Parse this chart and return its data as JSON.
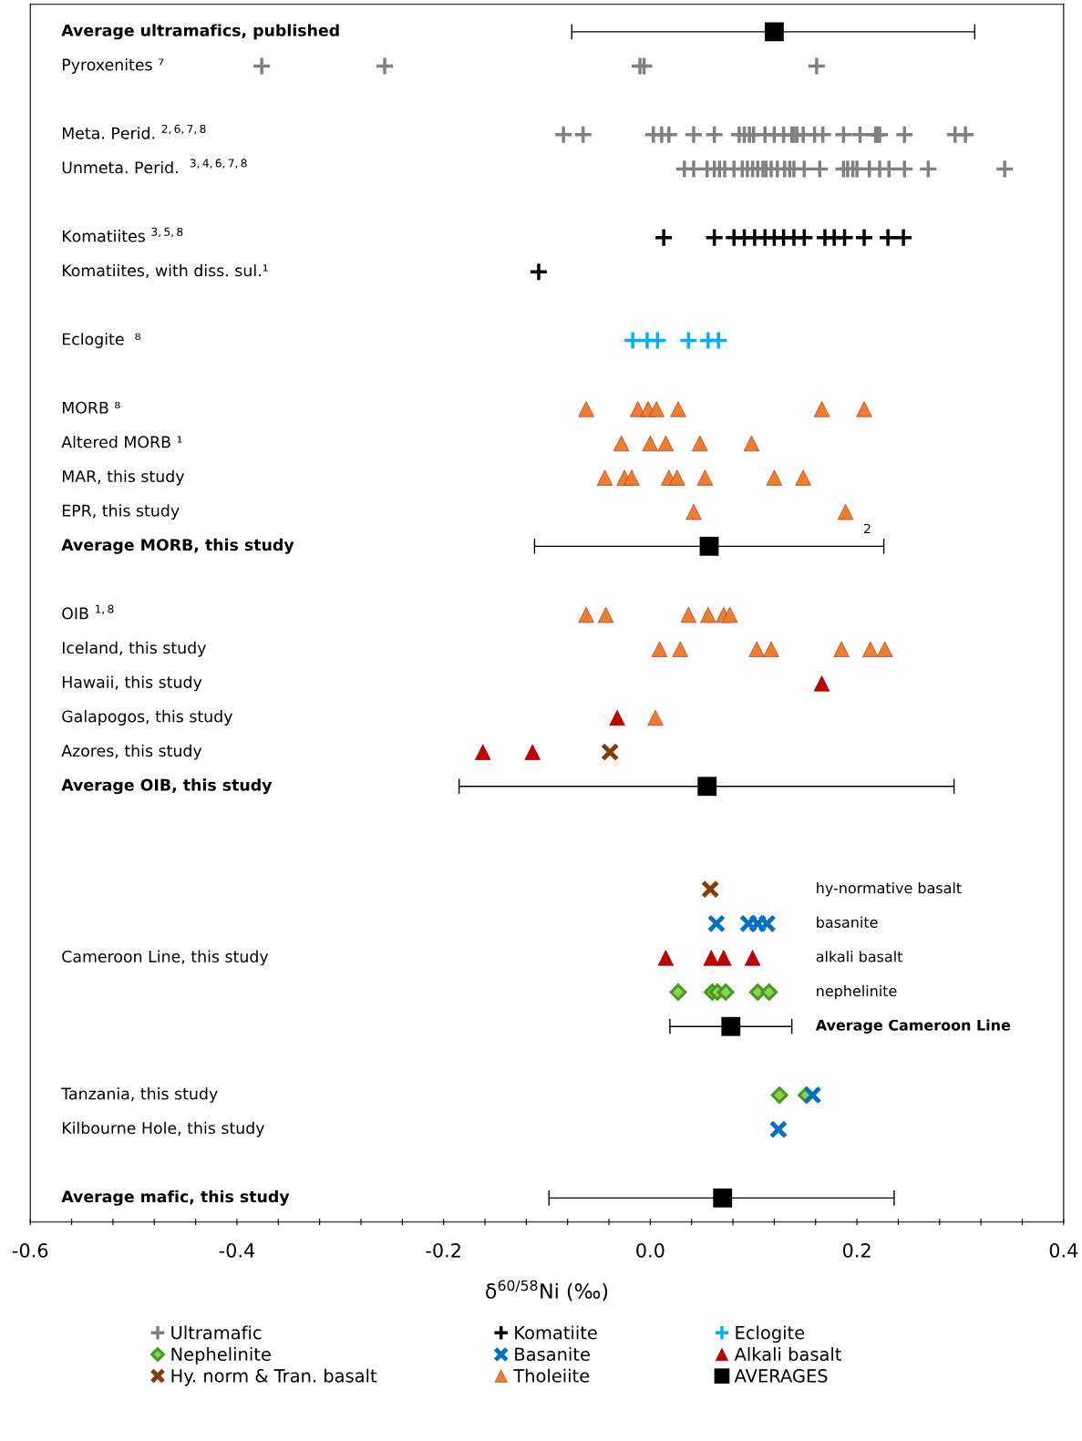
{
  "chart_data": {
    "type": "scatter",
    "orientation": "horizontal",
    "xlabel": "δ$^{60/58}$Ni (‰)",
    "categories": [
      "Average ultramafics, published",
      "Pyroxenites ⁷",
      null,
      "Meta. Perid. $^{2,6,7,8}$",
      "Unmeta. Perid.  $^{3,4,6,7,8}$",
      null,
      "Komatiites $^{3,5,8}$",
      "Komatiites, with diss. sul.¹",
      null,
      "Eclogite  ⁸",
      null,
      "MORB ⁸",
      "Altered MORB ¹",
      "MAR, this study",
      "EPR, this study",
      "Average MORB, this study",
      null,
      "OIB $^{1,8}$",
      "Iceland, this study",
      "Hawaii, this study",
      "Galapogos, this study",
      "Azores, this study",
      "Average OIB, this study",
      null,
      null,
      "hy-normative basalt",
      "basanite",
      "Cameroon Line, this study",
      "nephelinite",
      "Average Cameroon Line",
      null,
      "Tanzania, this study",
      "Kilbourne Hole, this study",
      null,
      "Average mafic, this study"
    ],
    "y2_categories": [
      null,
      null,
      null,
      null,
      null,
      null,
      null,
      null,
      null,
      null,
      null,
      null,
      null,
      null,
      null,
      null,
      null,
      null,
      null,
      null,
      null,
      null,
      null,
      null,
      null,
      null,
      null,
      "alkali basalt",
      null,
      null,
      null,
      null,
      null,
      null,
      null
    ],
    "xlim": [
      -0.6,
      0.4
    ],
    "xticks": [
      -0.6,
      {
        "value": -0.56,
        "label": null
      },
      {
        "value": -0.52,
        "label": null
      },
      {
        "value": -0.48,
        "label": null
      },
      {
        "value": -0.44,
        "label": null
      },
      -0.4,
      {
        "value": -0.36,
        "label": null
      },
      {
        "value": -0.32,
        "label": null
      },
      {
        "value": -0.28,
        "label": null
      },
      {
        "value": -0.24,
        "label": null
      },
      -0.2,
      {
        "value": -0.16,
        "label": null
      },
      {
        "value": -0.12,
        "label": null
      },
      {
        "value": -0.08,
        "label": null
      },
      {
        "value": -0.04,
        "label": null
      },
      {
        "value": 0,
        "label": "0.0"
      },
      {
        "value": 0.04,
        "label": null
      },
      {
        "value": 0.08,
        "label": null
      },
      {
        "value": 0.12,
        "label": null
      },
      {
        "value": 0.16,
        "label": null
      },
      0.2,
      {
        "value": 0.24,
        "label": null
      },
      {
        "value": 0.28,
        "label": null
      },
      {
        "value": 0.32,
        "label": null
      },
      {
        "value": 0.36,
        "label": null
      },
      0.4
    ],
    "grid": false,
    "legend": "bottom",
    "annotations": [
      {
        "text": "2",
        "x": 0.189,
        "y": "EPR, this study"
      }
    ],
    "series": [
      {
        "name": "Ultramafic",
        "color": "#808080",
        "marker": "cross",
        "values": [
          -0.376,
          -0.257,
          -0.01,
          -0.006,
          0.161,
          -0.084,
          -0.065,
          0.003,
          0.011,
          0.018,
          0.042,
          0.062,
          0.086,
          0.091,
          0.096,
          0.1,
          0.111,
          0.12,
          0.129,
          0.137,
          0.139,
          0.142,
          0.148,
          0.159,
          0.167,
          0.187,
          0.203,
          0.218,
          0.22,
          0.222,
          0.246,
          0.295,
          0.305,
          0.033,
          0.042,
          0.055,
          0.062,
          0.067,
          0.072,
          0.081,
          0.089,
          0.094,
          0.099,
          0.104,
          0.109,
          0.112,
          0.117,
          0.123,
          0.13,
          0.135,
          0.139,
          0.149,
          0.164,
          0.187,
          0.191,
          0.196,
          0.2,
          0.212,
          0.222,
          0.231,
          0.246,
          0.269,
          0.343
        ],
        "x": [
          "Pyroxenites ⁷",
          "Pyroxenites ⁷",
          "Pyroxenites ⁷",
          "Pyroxenites ⁷",
          "Pyroxenites ⁷",
          "Meta. Perid. $^{2,6,7,8}$",
          "Meta. Perid. $^{2,6,7,8}$",
          "Meta. Perid. $^{2,6,7,8}$",
          "Meta. Perid. $^{2,6,7,8}$",
          "Meta. Perid. $^{2,6,7,8}$",
          "Meta. Perid. $^{2,6,7,8}$",
          "Meta. Perid. $^{2,6,7,8}$",
          "Meta. Perid. $^{2,6,7,8}$",
          "Meta. Perid. $^{2,6,7,8}$",
          "Meta. Perid. $^{2,6,7,8}$",
          "Meta. Perid. $^{2,6,7,8}$",
          "Meta. Perid. $^{2,6,7,8}$",
          "Meta. Perid. $^{2,6,7,8}$",
          "Meta. Perid. $^{2,6,7,8}$",
          "Meta. Perid. $^{2,6,7,8}$",
          "Meta. Perid. $^{2,6,7,8}$",
          "Meta. Perid. $^{2,6,7,8}$",
          "Meta. Perid. $^{2,6,7,8}$",
          "Meta. Perid. $^{2,6,7,8}$",
          "Meta. Perid. $^{2,6,7,8}$",
          "Meta. Perid. $^{2,6,7,8}$",
          "Meta. Perid. $^{2,6,7,8}$",
          "Meta. Perid. $^{2,6,7,8}$",
          "Meta. Perid. $^{2,6,7,8}$",
          "Meta. Perid. $^{2,6,7,8}$",
          "Meta. Perid. $^{2,6,7,8}$",
          "Meta. Perid. $^{2,6,7,8}$",
          "Meta. Perid. $^{2,6,7,8}$",
          "Unmeta. Perid.  $^{3,4,6,7,8}$",
          "Unmeta. Perid.  $^{3,4,6,7,8}$",
          "Unmeta. Perid.  $^{3,4,6,7,8}$",
          "Unmeta. Perid.  $^{3,4,6,7,8}$",
          "Unmeta. Perid.  $^{3,4,6,7,8}$",
          "Unmeta. Perid.  $^{3,4,6,7,8}$",
          "Unmeta. Perid.  $^{3,4,6,7,8}$",
          "Unmeta. Perid.  $^{3,4,6,7,8}$",
          "Unmeta. Perid.  $^{3,4,6,7,8}$",
          "Unmeta. Perid.  $^{3,4,6,7,8}$",
          "Unmeta. Perid.  $^{3,4,6,7,8}$",
          "Unmeta. Perid.  $^{3,4,6,7,8}$",
          "Unmeta. Perid.  $^{3,4,6,7,8}$",
          "Unmeta. Perid.  $^{3,4,6,7,8}$",
          "Unmeta. Perid.  $^{3,4,6,7,8}$",
          "Unmeta. Perid.  $^{3,4,6,7,8}$",
          "Unmeta. Perid.  $^{3,4,6,7,8}$",
          "Unmeta. Perid.  $^{3,4,6,7,8}$",
          "Unmeta. Perid.  $^{3,4,6,7,8}$",
          "Unmeta. Perid.  $^{3,4,6,7,8}$",
          "Unmeta. Perid.  $^{3,4,6,7,8}$",
          "Unmeta. Perid.  $^{3,4,6,7,8}$",
          "Unmeta. Perid.  $^{3,4,6,7,8}$",
          "Unmeta. Perid.  $^{3,4,6,7,8}$",
          "Unmeta. Perid.  $^{3,4,6,7,8}$",
          "Unmeta. Perid.  $^{3,4,6,7,8}$",
          "Unmeta. Perid.  $^{3,4,6,7,8}$",
          "Unmeta. Perid.  $^{3,4,6,7,8}$",
          "Unmeta. Perid.  $^{3,4,6,7,8}$",
          "Unmeta. Perid.  $^{3,4,6,7,8}$"
        ]
      },
      {
        "name": "Komatiite",
        "color": "#000000",
        "marker": "cross",
        "values": [
          0.013,
          0.062,
          0.081,
          0.091,
          0.101,
          0.111,
          0.12,
          0.129,
          0.139,
          0.149,
          0.169,
          0.178,
          0.188,
          0.207,
          0.23,
          0.245,
          -0.108
        ],
        "x": [
          "Komatiites $^{3,5,8}$",
          "Komatiites $^{3,5,8}$",
          "Komatiites $^{3,5,8}$",
          "Komatiites $^{3,5,8}$",
          "Komatiites $^{3,5,8}$",
          "Komatiites $^{3,5,8}$",
          "Komatiites $^{3,5,8}$",
          "Komatiites $^{3,5,8}$",
          "Komatiites $^{3,5,8}$",
          "Komatiites $^{3,5,8}$",
          "Komatiites $^{3,5,8}$",
          "Komatiites $^{3,5,8}$",
          "Komatiites $^{3,5,8}$",
          "Komatiites $^{3,5,8}$",
          "Komatiites $^{3,5,8}$",
          "Komatiites $^{3,5,8}$",
          "Komatiites, with diss. sul.¹"
        ]
      },
      {
        "name": "Eclogite",
        "color": "#00b0f0",
        "marker": "cross",
        "values": [
          -0.017,
          -0.003,
          0.007,
          0.037,
          0.056,
          0.066
        ],
        "x": [
          "Eclogite  ⁸",
          "Eclogite  ⁸",
          "Eclogite  ⁸",
          "Eclogite  ⁸",
          "Eclogite  ⁸",
          "Eclogite  ⁸"
        ]
      },
      {
        "name": "Nephelinite",
        "color": "#92d050",
        "marker": "diamond",
        "values": [
          0.027,
          0.06,
          0.065,
          0.073,
          0.104,
          0.115,
          0.125,
          0.151
        ],
        "x": [
          "nephelinite",
          "nephelinite",
          "nephelinite",
          "nephelinite",
          "nephelinite",
          "nephelinite",
          "Tanzania, this study",
          "Tanzania, this study"
        ]
      },
      {
        "name": "Basanite",
        "color": "#0070c0",
        "marker": "x",
        "values": [
          0.064,
          0.095,
          0.104,
          0.113,
          0.157,
          0.124
        ],
        "x": [
          "basanite",
          "basanite",
          "basanite",
          "basanite",
          "Tanzania, this study",
          "Kilbourne Hole, this study"
        ]
      },
      {
        "name": "Alkali basalt",
        "color": "#c00000",
        "marker": "triangle",
        "values": [
          0.166,
          -0.032,
          -0.162,
          -0.114,
          0.015,
          0.059,
          0.071,
          0.099
        ],
        "x": [
          "Hawaii, this study",
          "Galapogos, this study",
          "Azores, this study",
          "Azores, this study",
          "Cameroon Line, this study",
          "Cameroon Line, this study",
          "Cameroon Line, this study",
          "Cameroon Line, this study"
        ]
      },
      {
        "name": "Hy. norm & Tran. basalt",
        "color": "#843c0c",
        "marker": "x",
        "values": [
          -0.039,
          0.058
        ],
        "x": [
          "Azores, this study",
          "hy-normative basalt"
        ]
      },
      {
        "name": "Tholeiite",
        "color": "#ed7d31",
        "marker": "triangle",
        "values": [
          -0.062,
          -0.012,
          -0.002,
          0.006,
          0.027,
          0.166,
          0.207,
          -0.028,
          0.0,
          0.015,
          0.048,
          0.098,
          -0.044,
          -0.025,
          -0.018,
          0.018,
          0.026,
          0.053,
          0.12,
          0.148,
          0.042,
          0.189,
          -0.062,
          -0.043,
          0.037,
          0.056,
          0.071,
          0.077,
          0.009,
          0.029,
          0.103,
          0.117,
          0.185,
          0.213,
          0.227,
          0.005
        ],
        "x": [
          "MORB ⁸",
          "MORB ⁸",
          "MORB ⁸",
          "MORB ⁸",
          "MORB ⁸",
          "MORB ⁸",
          "MORB ⁸",
          "Altered MORB ¹",
          "Altered MORB ¹",
          "Altered MORB ¹",
          "Altered MORB ¹",
          "Altered MORB ¹",
          "MAR, this study",
          "MAR, this study",
          "MAR, this study",
          "MAR, this study",
          "MAR, this study",
          "MAR, this study",
          "MAR, this study",
          "MAR, this study",
          "EPR, this study",
          "EPR, this study",
          "OIB $^{1,8}$",
          "OIB $^{1,8}$",
          "OIB $^{1,8}$",
          "OIB $^{1,8}$",
          "OIB $^{1,8}$",
          "OIB $^{1,8}$",
          "Iceland, this study",
          "Iceland, this study",
          "Iceland, this study",
          "Iceland, this study",
          "Iceland, this study",
          "Iceland, this study",
          "Iceland, this study",
          "Galapogos, this study"
        ]
      },
      {
        "name": "AVERAGES",
        "color": "#000000",
        "marker": "square",
        "values": [
          0.12,
          0.057,
          0.055,
          0.078,
          0.07
        ],
        "x": [
          "Average ultramafics, published",
          "Average MORB, this study",
          "Average OIB, this study",
          "Average Cameroon Line",
          "Average mafic, this study"
        ],
        "errors": [
          [
            -0.076,
            0.314
          ],
          [
            -0.112,
            0.226
          ],
          [
            -0.185,
            0.294
          ],
          [
            0.019,
            0.137
          ],
          [
            -0.098,
            0.236
          ]
        ]
      }
    ]
  }
}
